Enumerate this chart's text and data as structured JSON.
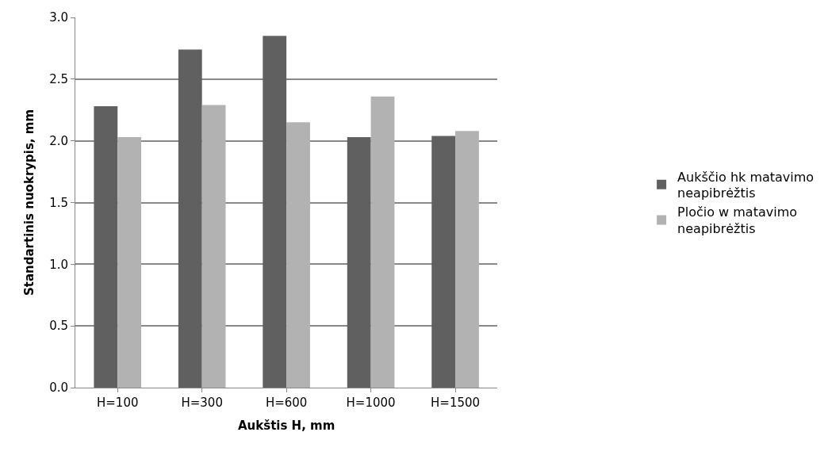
{
  "chart_data": {
    "type": "bar",
    "xlabel": "Aukštis H, mm",
    "ylabel": "Standartinis nuokrypis, mm",
    "categories": [
      "H=100",
      "H=300",
      "H=600",
      "H=1000",
      "H=1500"
    ],
    "series": [
      {
        "name": "Aukščio hk matavimo neapibrėžtis",
        "color": "#606060",
        "values": [
          2.28,
          2.74,
          2.85,
          2.03,
          2.04
        ]
      },
      {
        "name": "Pločio w matavimo neapibrėžtis",
        "color": "#b2b2b2",
        "values": [
          2.03,
          2.29,
          2.15,
          2.36,
          2.08
        ]
      }
    ],
    "ylim": [
      0,
      3
    ],
    "yticks": [
      {
        "value": 0,
        "label": "0.0"
      },
      {
        "value": 0.5,
        "label": "0.5"
      },
      {
        "value": 1,
        "label": "1.0"
      },
      {
        "value": 1.5,
        "label": "1.5"
      },
      {
        "value": 2,
        "label": "2.0"
      },
      {
        "value": 2.5,
        "label": "2.5"
      },
      {
        "value": 3,
        "label": "3.0"
      }
    ],
    "grid": "y",
    "legend": "right"
  }
}
